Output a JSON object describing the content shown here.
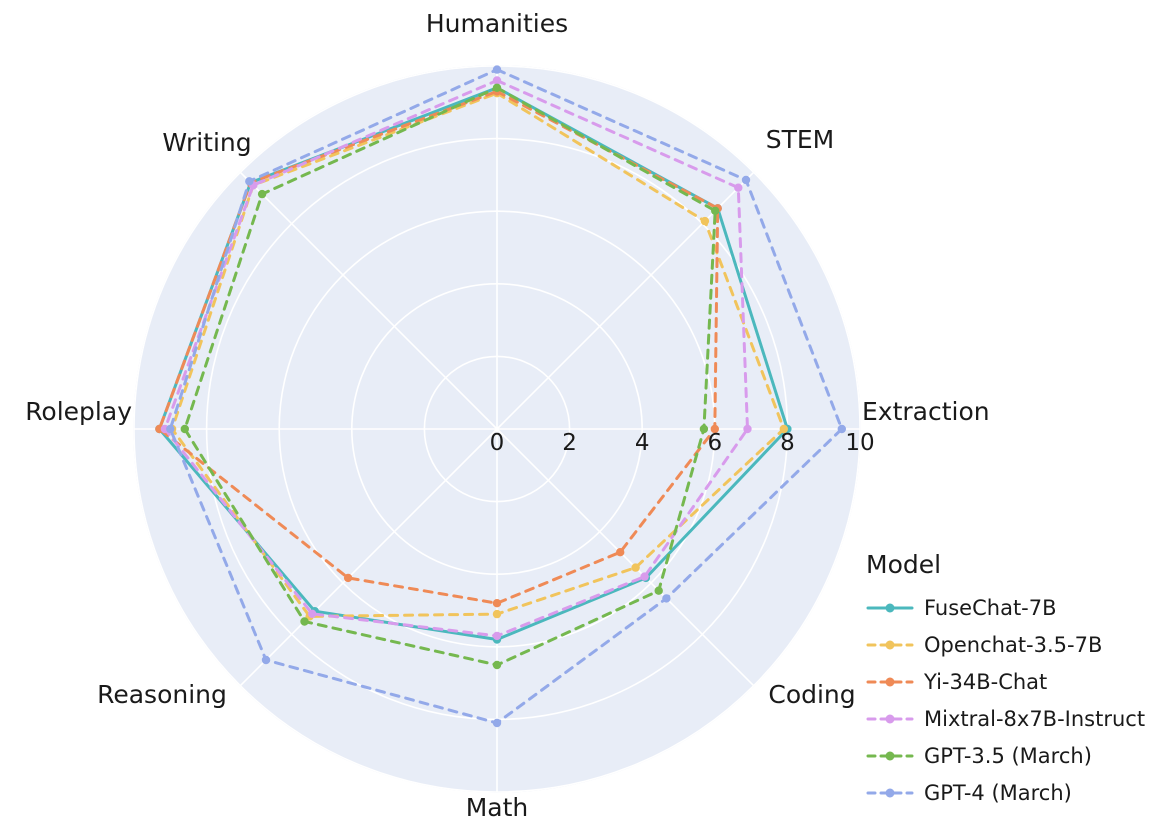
{
  "chart_data": {
    "type": "radar",
    "legend_title": "Model",
    "categories": [
      "Humanities",
      "STEM",
      "Extraction",
      "Coding",
      "Math",
      "Reasoning",
      "Roleplay",
      "Writing"
    ],
    "r_ticks": [
      0,
      2,
      4,
      6,
      8,
      10
    ],
    "r_max": 10,
    "style": {
      "background": "#e8edf7",
      "grid": "#ffffff",
      "outline": "#dde3f0",
      "text": "#1a1a1a"
    },
    "series": [
      {
        "name": "FuseChat-7B",
        "color": "#4bb8bd",
        "dash": "solid",
        "values": [
          9.4,
          8.6,
          8.0,
          5.8,
          5.8,
          7.1,
          9.3,
          9.6
        ]
      },
      {
        "name": "Openchat-3.5-7B",
        "color": "#f1c45c",
        "dash": "dashed",
        "values": [
          9.25,
          8.1,
          7.9,
          5.4,
          5.1,
          7.3,
          8.95,
          9.5
        ]
      },
      {
        "name": "Yi-34B-Chat",
        "color": "#ef8a56",
        "dash": "dashed",
        "values": [
          9.3,
          8.6,
          6.0,
          4.8,
          4.8,
          5.8,
          9.3,
          9.6
        ]
      },
      {
        "name": "Mixtral-8x7B-Instruct",
        "color": "#d89bec",
        "dash": "dashed",
        "values": [
          9.6,
          9.4,
          6.9,
          5.75,
          5.7,
          7.2,
          9.15,
          9.5
        ]
      },
      {
        "name": "GPT-3.5 (March)",
        "color": "#75b84f",
        "dash": "dashed",
        "values": [
          9.4,
          8.5,
          5.7,
          6.3,
          6.5,
          7.5,
          8.6,
          9.15
        ]
      },
      {
        "name": "GPT-4 (March)",
        "color": "#93a9e9",
        "dash": "dashed",
        "values": [
          9.9,
          9.7,
          9.5,
          6.6,
          8.1,
          9.0,
          9.0,
          9.65
        ]
      }
    ]
  }
}
